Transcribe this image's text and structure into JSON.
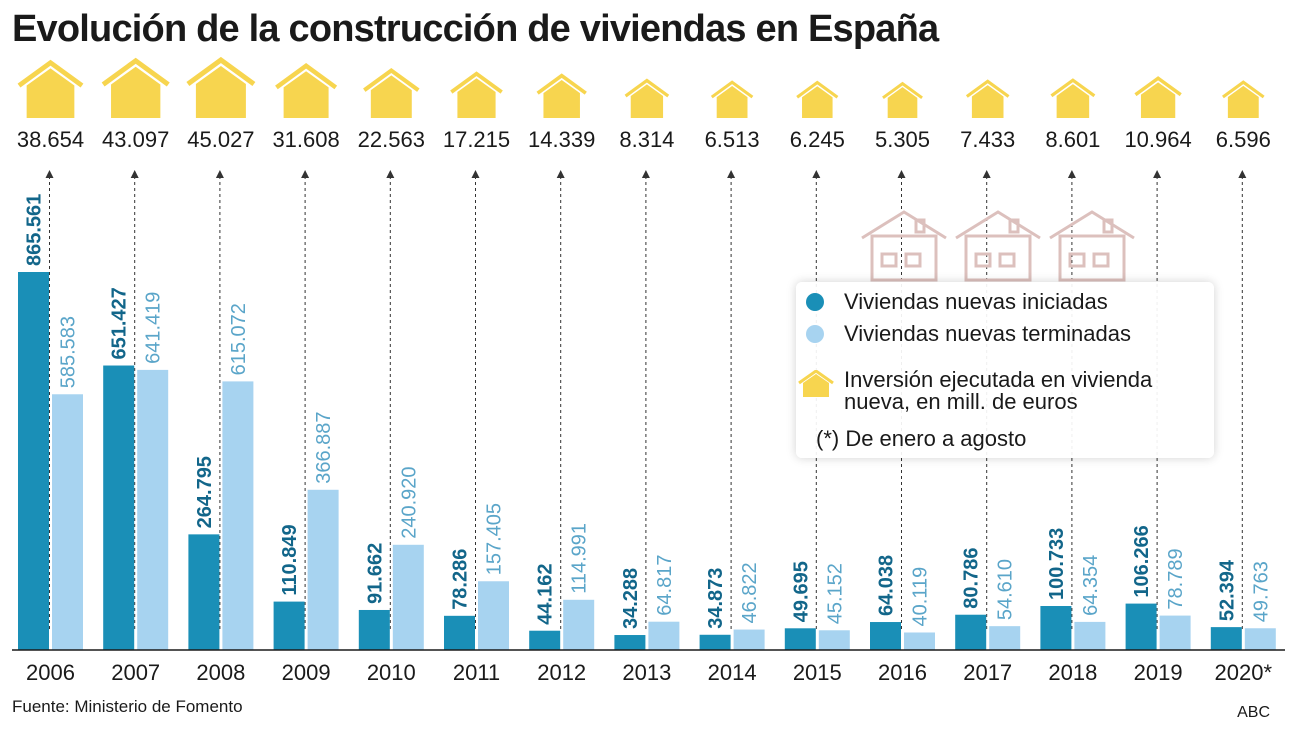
{
  "title": "Evolución de la construcción de viviendas en España",
  "source": "Fuente: Ministerio de Fomento",
  "credit": "ABC",
  "colors": {
    "iniciadas": "#1a8fb7",
    "terminadas": "#a7d3f0",
    "inversion": "#f7d54f",
    "iniciadas_label": "#12668a",
    "terminadas_label": "#5aa5c9",
    "deco_house": "#dcc0bd"
  },
  "legend": {
    "iniciadas": "Viviendas nuevas iniciadas",
    "terminadas": "Viviendas nuevas terminadas",
    "inversion_line1": "Inversión ejecutada en vivienda",
    "inversion_line2": "nueva, en mill. de euros",
    "note": "(*) De enero a agosto"
  },
  "chart_data": {
    "type": "bar",
    "title": "Evolución de la construcción de viviendas en España",
    "categories": [
      "2006",
      "2007",
      "2008",
      "2009",
      "2010",
      "2011",
      "2012",
      "2013",
      "2014",
      "2015",
      "2016",
      "2017",
      "2018",
      "2019",
      "2020*"
    ],
    "series": [
      {
        "name": "Viviendas nuevas iniciadas",
        "values": [
          865561,
          651427,
          264795,
          110849,
          91662,
          78286,
          44162,
          34288,
          34873,
          49695,
          64038,
          80786,
          100733,
          106266,
          52394
        ],
        "labels": [
          "865.561",
          "651.427",
          "264.795",
          "110.849",
          "91.662",
          "78.286",
          "44.162",
          "34.288",
          "34.873",
          "49.695",
          "64.038",
          "80.786",
          "100.733",
          "106.266",
          "52.394"
        ]
      },
      {
        "name": "Viviendas nuevas terminadas",
        "values": [
          585583,
          641419,
          615072,
          366887,
          240920,
          157405,
          114991,
          64817,
          46822,
          45152,
          40119,
          54610,
          64354,
          78789,
          49763
        ],
        "labels": [
          "585.583",
          "641.419",
          "615.072",
          "366.887",
          "240.920",
          "157.405",
          "114.991",
          "64.817",
          "46.822",
          "45.152",
          "40.119",
          "54.610",
          "64.354",
          "78.789",
          "49.763"
        ]
      },
      {
        "name": "Inversión ejecutada en vivienda nueva, en mill. de euros",
        "values": [
          38654,
          43097,
          45027,
          31608,
          22563,
          17215,
          14339,
          8314,
          6513,
          6245,
          5305,
          7433,
          8601,
          10964,
          6596
        ],
        "labels": [
          "38.654",
          "43.097",
          "45.027",
          "31.608",
          "22.563",
          "17.215",
          "14.339",
          "8.314",
          "6.513",
          "6.245",
          "5.305",
          "7.433",
          "8.601",
          "10.964",
          "6.596"
        ]
      }
    ],
    "ylim": [
      0,
      865561
    ],
    "grid": false,
    "legend_position": "right"
  }
}
